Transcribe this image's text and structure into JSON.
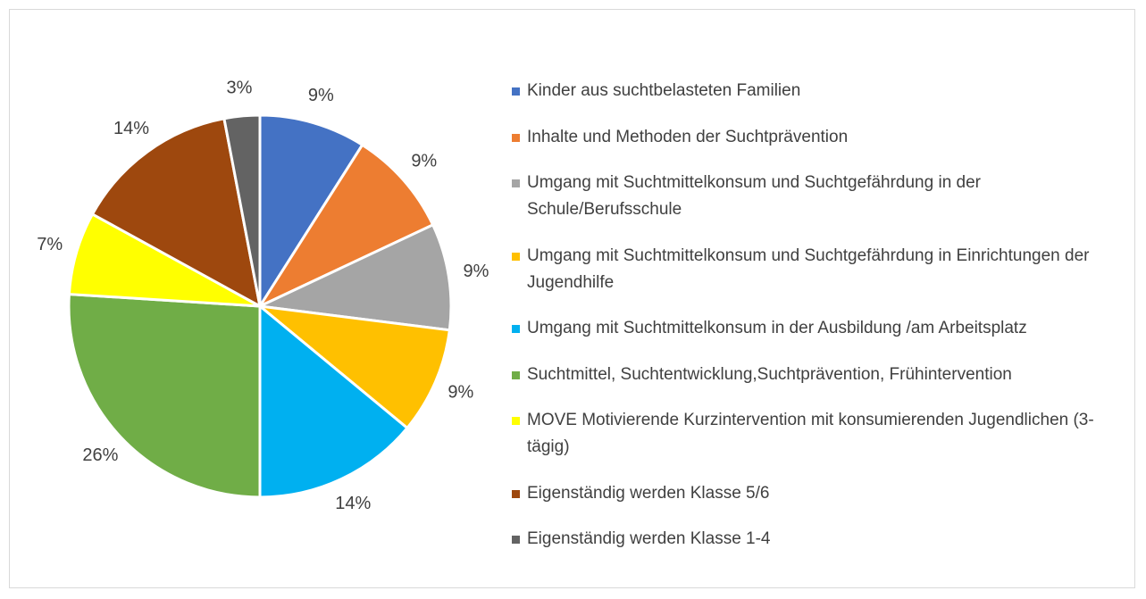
{
  "chart_data": {
    "type": "pie",
    "categories": [
      "Kinder aus suchtbelasteten Familien",
      "Inhalte und Methoden der Suchtprävention",
      "Umgang mit Suchtmittelkonsum und Suchtgefährdung in der Schule/Berufsschule",
      "Umgang mit Suchtmittelkonsum und Suchtgefährdung in Einrichtungen der Jugendhilfe",
      "Umgang mit Suchtmittelkonsum in der Ausbildung /am Arbeitsplatz",
      "Suchtmittel, Suchtentwicklung,Suchtprävention, Frühintervention",
      "MOVE Motivierende Kurzintervention mit konsumierenden Jugendlichen (3-tägig)",
      "Eigenständig werden Klasse 5/6",
      "Eigenständig werden Klasse 1-4"
    ],
    "values": [
      9,
      9,
      9,
      9,
      14,
      26,
      7,
      14,
      3
    ],
    "value_labels": [
      "9%",
      "9%",
      "9%",
      "9%",
      "14%",
      "26%",
      "7%",
      "14%",
      "3%"
    ],
    "colors": [
      "#4472c4",
      "#ed7d31",
      "#a5a5a5",
      "#ffc000",
      "#00b0f0",
      "#70ad47",
      "#ffff00",
      "#9e480e",
      "#636363"
    ],
    "legend": "right"
  }
}
